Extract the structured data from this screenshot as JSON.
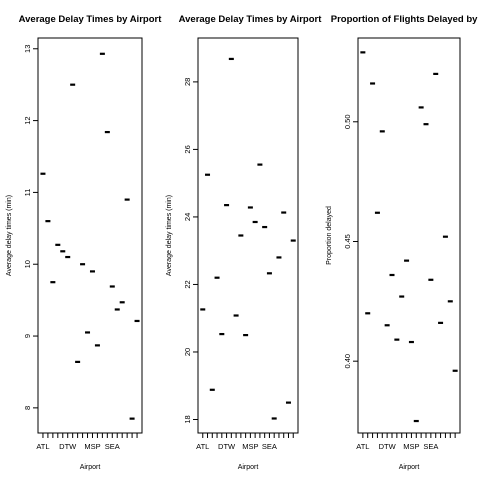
{
  "chart_data": [
    {
      "type": "scatter",
      "title": "Average Delay Times by Airport",
      "xlabel": "Airport",
      "ylabel": "Average delay times (min)",
      "ylim": [
        7.65,
        13.15
      ],
      "yticks": [
        8,
        9,
        10,
        11,
        12,
        13
      ],
      "ytick_labels": [
        "8",
        "9",
        "10",
        "11",
        "12",
        "13"
      ],
      "marker": "short-dash",
      "n_points": 20,
      "xtick_labels": [
        "ATL",
        "",
        "",
        "",
        "",
        "DTW",
        "",
        "",
        "",
        "",
        "MSP",
        "",
        "",
        "",
        "SEA",
        "",
        "",
        "",
        "",
        ""
      ],
      "values": [
        11.26,
        10.6,
        9.75,
        10.27,
        10.18,
        10.1,
        12.5,
        8.64,
        10.0,
        9.05,
        9.9,
        8.87,
        12.93,
        11.84,
        9.69,
        9.37,
        9.47,
        10.9,
        7.85,
        9.21
      ]
    },
    {
      "type": "scatter",
      "title": "Average Delay Times by Airport",
      "xlabel": "Airport",
      "ylabel": "Average delay times (min)",
      "ylim": [
        17.6,
        29.3
      ],
      "yticks": [
        18,
        20,
        22,
        24,
        26,
        28
      ],
      "ytick_labels": [
        "18",
        "20",
        "22",
        "24",
        "26",
        "28"
      ],
      "marker": "short-dash",
      "n_points": 20,
      "xtick_labels": [
        "ATL",
        "",
        "",
        "",
        "",
        "DTW",
        "",
        "",
        "",
        "",
        "MSP",
        "",
        "",
        "",
        "SEA",
        "",
        "",
        "",
        "",
        ""
      ],
      "values": [
        21.26,
        25.25,
        18.88,
        22.2,
        20.53,
        24.35,
        28.68,
        21.08,
        23.45,
        20.5,
        24.28,
        23.85,
        25.55,
        23.7,
        22.33,
        18.03,
        22.8,
        24.13,
        18.5,
        23.3
      ]
    },
    {
      "type": "scatter",
      "title": "Proportion of Flights Delayed by Ai",
      "xlabel": "Airport",
      "ylabel": "Proportion delayed",
      "ylim": [
        0.37,
        0.535
      ],
      "yticks": [
        0.4,
        0.45,
        0.5
      ],
      "ytick_labels": [
        "0.40",
        "0.45",
        "0.50"
      ],
      "marker": "short-dash",
      "n_points": 20,
      "xtick_labels": [
        "ATL",
        "",
        "",
        "",
        "",
        "DTW",
        "",
        "",
        "",
        "",
        "MSP",
        "",
        "",
        "",
        "SEA",
        "",
        "",
        "",
        "",
        ""
      ],
      "values": [
        0.529,
        0.42,
        0.516,
        0.462,
        0.496,
        0.415,
        0.436,
        0.409,
        0.427,
        0.442,
        0.408,
        0.375,
        0.506,
        0.499,
        0.434,
        0.52,
        0.416,
        0.452,
        0.425,
        0.396
      ]
    }
  ]
}
